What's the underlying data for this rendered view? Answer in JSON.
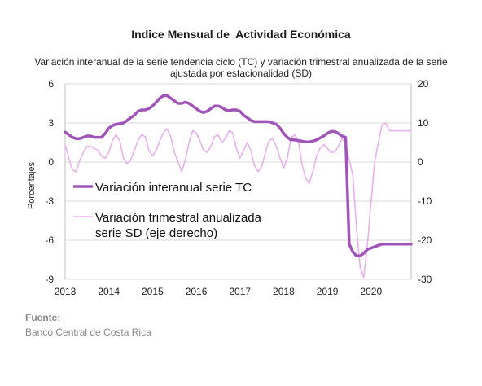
{
  "source": {
    "label": "Fuente:",
    "text": "Banco Central de Costa Rica"
  },
  "chart_data": {
    "type": "line",
    "title": "Indice Mensual de  Actividad Económica",
    "subtitle": "Variación interanual de la serie tendencia ciclo (TC) y variación trimestral anualizada de la serie ajustada por estacionalidad (SD)",
    "ylabel": "Porcentajes",
    "xlabel": "",
    "xlim": [
      2013,
      2020.917
    ],
    "x_ticks": [
      "2013",
      "2014",
      "2015",
      "2016",
      "2017",
      "2018",
      "2019",
      "2020"
    ],
    "ylim_left": [
      -9,
      6
    ],
    "ylim_right": [
      -30,
      20
    ],
    "y_ticks_left": [
      "6",
      "3",
      "0",
      "-3",
      "-6",
      "-9"
    ],
    "y_ticks_right": [
      "20",
      "10",
      "0",
      "-10",
      "-20",
      "-30"
    ],
    "grid": "horizontal",
    "legend": {
      "placement": "center-left"
    },
    "colors": {
      "tc": "#a154b8",
      "sd": "#e8b0ee",
      "grid": "#d9d9d9",
      "axis": "#bfbfbf"
    },
    "series": [
      {
        "name": "Variación interanual serie TC",
        "axis": "left",
        "x": [
          2013.0,
          2013.083,
          2013.167,
          2013.25,
          2013.333,
          2013.417,
          2013.5,
          2013.583,
          2013.667,
          2013.75,
          2013.833,
          2013.917,
          2014.0,
          2014.083,
          2014.167,
          2014.25,
          2014.333,
          2014.417,
          2014.5,
          2014.583,
          2014.667,
          2014.75,
          2014.833,
          2014.917,
          2015.0,
          2015.083,
          2015.167,
          2015.25,
          2015.333,
          2015.417,
          2015.5,
          2015.583,
          2015.667,
          2015.75,
          2015.833,
          2015.917,
          2016.0,
          2016.083,
          2016.167,
          2016.25,
          2016.333,
          2016.417,
          2016.5,
          2016.583,
          2016.667,
          2016.75,
          2016.833,
          2016.917,
          2017.0,
          2017.083,
          2017.167,
          2017.25,
          2017.333,
          2017.417,
          2017.5,
          2017.583,
          2017.667,
          2017.75,
          2017.833,
          2017.917,
          2018.0,
          2018.083,
          2018.167,
          2018.25,
          2018.333,
          2018.417,
          2018.5,
          2018.583,
          2018.667,
          2018.75,
          2018.833,
          2018.917,
          2019.0,
          2019.083,
          2019.167,
          2019.25,
          2019.333,
          2019.417,
          2019.5,
          2019.583,
          2019.667,
          2019.75,
          2019.833,
          2019.917,
          2020.0,
          2020.083,
          2020.167,
          2020.25,
          2020.333,
          2020.417,
          2020.5,
          2020.583,
          2020.667,
          2020.75,
          2020.833,
          2020.917
        ],
        "values": [
          2.3,
          2.1,
          1.9,
          1.8,
          1.8,
          1.9,
          2.0,
          2.0,
          1.9,
          1.9,
          1.9,
          2.2,
          2.6,
          2.8,
          2.9,
          2.95,
          3.0,
          3.2,
          3.4,
          3.6,
          3.9,
          4.0,
          4.0,
          4.1,
          4.3,
          4.6,
          4.9,
          5.1,
          5.1,
          4.9,
          4.7,
          4.5,
          4.5,
          4.6,
          4.5,
          4.3,
          4.1,
          3.9,
          3.8,
          3.9,
          4.1,
          4.3,
          4.3,
          4.2,
          4.0,
          3.95,
          4.0,
          4.0,
          3.9,
          3.6,
          3.4,
          3.2,
          3.1,
          3.1,
          3.1,
          3.1,
          3.1,
          3.0,
          2.9,
          2.6,
          2.2,
          1.9,
          1.7,
          1.7,
          1.65,
          1.6,
          1.55,
          1.55,
          1.6,
          1.7,
          1.85,
          2.0,
          2.2,
          2.35,
          2.35,
          2.2,
          2.0,
          1.9,
          -6.3,
          -6.9,
          -7.2,
          -7.2,
          -7.0,
          -6.7,
          -6.6,
          -6.5,
          -6.4,
          -6.3,
          -6.3,
          -6.3,
          -6.3,
          -6.3,
          -6.3,
          -6.3,
          -6.3,
          -6.3
        ]
      },
      {
        "name": "Variación trimestral anualizada serie SD (eje derecho)",
        "axis": "right",
        "x": [
          2013.0,
          2013.083,
          2013.167,
          2013.25,
          2013.333,
          2013.417,
          2013.5,
          2013.583,
          2013.667,
          2013.75,
          2013.833,
          2013.917,
          2014.0,
          2014.083,
          2014.167,
          2014.25,
          2014.333,
          2014.417,
          2014.5,
          2014.583,
          2014.667,
          2014.75,
          2014.833,
          2014.917,
          2015.0,
          2015.083,
          2015.167,
          2015.25,
          2015.333,
          2015.417,
          2015.5,
          2015.583,
          2015.667,
          2015.75,
          2015.833,
          2015.917,
          2016.0,
          2016.083,
          2016.167,
          2016.25,
          2016.333,
          2016.417,
          2016.5,
          2016.583,
          2016.667,
          2016.75,
          2016.833,
          2016.917,
          2017.0,
          2017.083,
          2017.167,
          2017.25,
          2017.333,
          2017.417,
          2017.5,
          2017.583,
          2017.667,
          2017.75,
          2017.833,
          2017.917,
          2018.0,
          2018.083,
          2018.167,
          2018.25,
          2018.333,
          2018.417,
          2018.5,
          2018.583,
          2018.667,
          2018.75,
          2018.833,
          2018.917,
          2019.0,
          2019.083,
          2019.167,
          2019.25,
          2019.333,
          2019.417,
          2019.5,
          2019.583,
          2019.667,
          2019.75,
          2019.833,
          2019.917,
          2020.0,
          2020.083,
          2020.167,
          2020.25,
          2020.333,
          2020.417,
          2020.5,
          2020.583,
          2020.667,
          2020.75,
          2020.833,
          2020.917
        ],
        "values": [
          4.5,
          1.0,
          -2.0,
          -2.5,
          0.5,
          2.5,
          4.0,
          4.0,
          3.5,
          3.0,
          1.5,
          1.0,
          2.5,
          5.5,
          7.0,
          5.5,
          1.0,
          -0.5,
          0.5,
          3.0,
          5.5,
          7.0,
          6.5,
          3.0,
          1.5,
          3.0,
          5.5,
          7.5,
          8.5,
          6.5,
          2.5,
          0.0,
          -2.5,
          0.5,
          5.0,
          8.0,
          7.5,
          5.5,
          3.0,
          2.5,
          4.0,
          6.5,
          7.0,
          5.0,
          6.0,
          8.0,
          7.5,
          3.5,
          1.0,
          3.0,
          5.0,
          3.0,
          -1.0,
          -2.5,
          -1.0,
          2.5,
          5.5,
          6.0,
          4.0,
          1.0,
          -1.5,
          1.0,
          6.0,
          7.0,
          5.5,
          -0.5,
          -4.0,
          -5.5,
          -2.5,
          1.5,
          3.5,
          4.5,
          3.5,
          2.5,
          2.5,
          4.0,
          6.0,
          5.0,
          0.5,
          -3.5,
          -17.0,
          -27.0,
          -29.5,
          -21.0,
          -10.0,
          0.0,
          5.0,
          9.5,
          10.0,
          8.0,
          8.0,
          8.0,
          8.0,
          8.0,
          8.0,
          8.0
        ]
      }
    ]
  }
}
